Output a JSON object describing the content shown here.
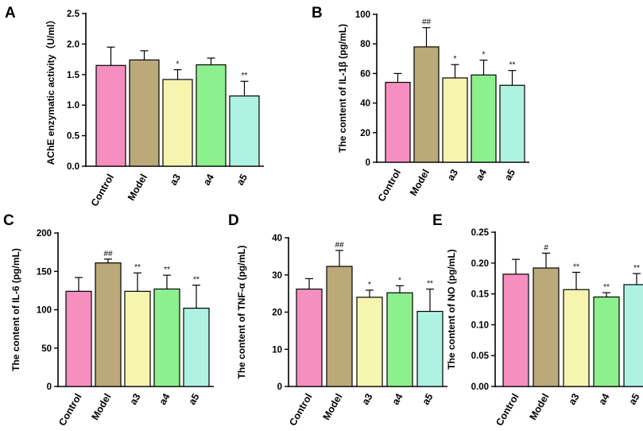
{
  "colors": {
    "Control": "#f58fbf",
    "Model": "#bba97a",
    "a3": "#f5f5b0",
    "a4": "#8cf08c",
    "a5": "#aef2e2",
    "axis": "#000000"
  },
  "chart_data": [
    {
      "type": "bar",
      "panel": "A",
      "ylabel": "AChE enzymatic activity（U/ml）",
      "categories": [
        "Control",
        "Model",
        "a3",
        "a4",
        "a5"
      ],
      "values": [
        1.65,
        1.74,
        1.42,
        1.66,
        1.15
      ],
      "errors": [
        0.3,
        0.15,
        0.16,
        0.11,
        0.24
      ],
      "significance": [
        "",
        "",
        "*",
        "",
        "**"
      ],
      "ylim": [
        0,
        2.5
      ],
      "ticks": [
        "0.0",
        "0.5",
        "1.0",
        "1.5",
        "2.0",
        "2.5"
      ]
    },
    {
      "type": "bar",
      "panel": "B",
      "ylabel": "The content of IL-1β (pg/mL)",
      "categories": [
        "Control",
        "Model",
        "a3",
        "a4",
        "a5"
      ],
      "values": [
        54,
        78,
        57,
        59,
        52
      ],
      "errors": [
        6,
        13,
        9,
        10,
        10
      ],
      "significance": [
        "",
        "##",
        "*",
        "*",
        "**"
      ],
      "ylim": [
        0,
        100
      ],
      "ticks": [
        "0",
        "20",
        "40",
        "60",
        "80",
        "100"
      ]
    },
    {
      "type": "bar",
      "panel": "C",
      "ylabel": "The content of IL-6 (pg/mL)",
      "categories": [
        "Control",
        "Model",
        "a3",
        "a4",
        "a5"
      ],
      "values": [
        124,
        161,
        124,
        127,
        102
      ],
      "errors": [
        18,
        5,
        24,
        18,
        30
      ],
      "significance": [
        "",
        "##",
        "**",
        "**",
        "**"
      ],
      "ylim": [
        0,
        200
      ],
      "ticks": [
        "0",
        "50",
        "100",
        "150",
        "200"
      ]
    },
    {
      "type": "bar",
      "panel": "D",
      "ylabel": "The content of TNF-α (pg/mL)",
      "categories": [
        "Control",
        "Model",
        "a3",
        "a4",
        "a5"
      ],
      "values": [
        26.2,
        32.3,
        24.0,
        25.2,
        20.2
      ],
      "errors": [
        2.8,
        4.3,
        1.9,
        1.9,
        6.0
      ],
      "significance": [
        "",
        "##",
        "*",
        "*",
        "**"
      ],
      "ylim": [
        0,
        40
      ],
      "ticks": [
        "0",
        "10",
        "20",
        "30",
        "40"
      ]
    },
    {
      "type": "bar",
      "panel": "E",
      "ylabel": "The content of NO (pg/mL)",
      "categories": [
        "Control",
        "Model",
        "a3",
        "a4",
        "a5"
      ],
      "values": [
        0.182,
        0.192,
        0.157,
        0.145,
        0.165
      ],
      "errors": [
        0.024,
        0.024,
        0.028,
        0.007,
        0.018
      ],
      "significance": [
        "",
        "#",
        "**",
        "**",
        "**"
      ],
      "ylim": [
        0,
        0.25
      ],
      "ticks": [
        "0.00",
        "0.05",
        "0.10",
        "0.15",
        "0.20",
        "0.25"
      ]
    }
  ]
}
